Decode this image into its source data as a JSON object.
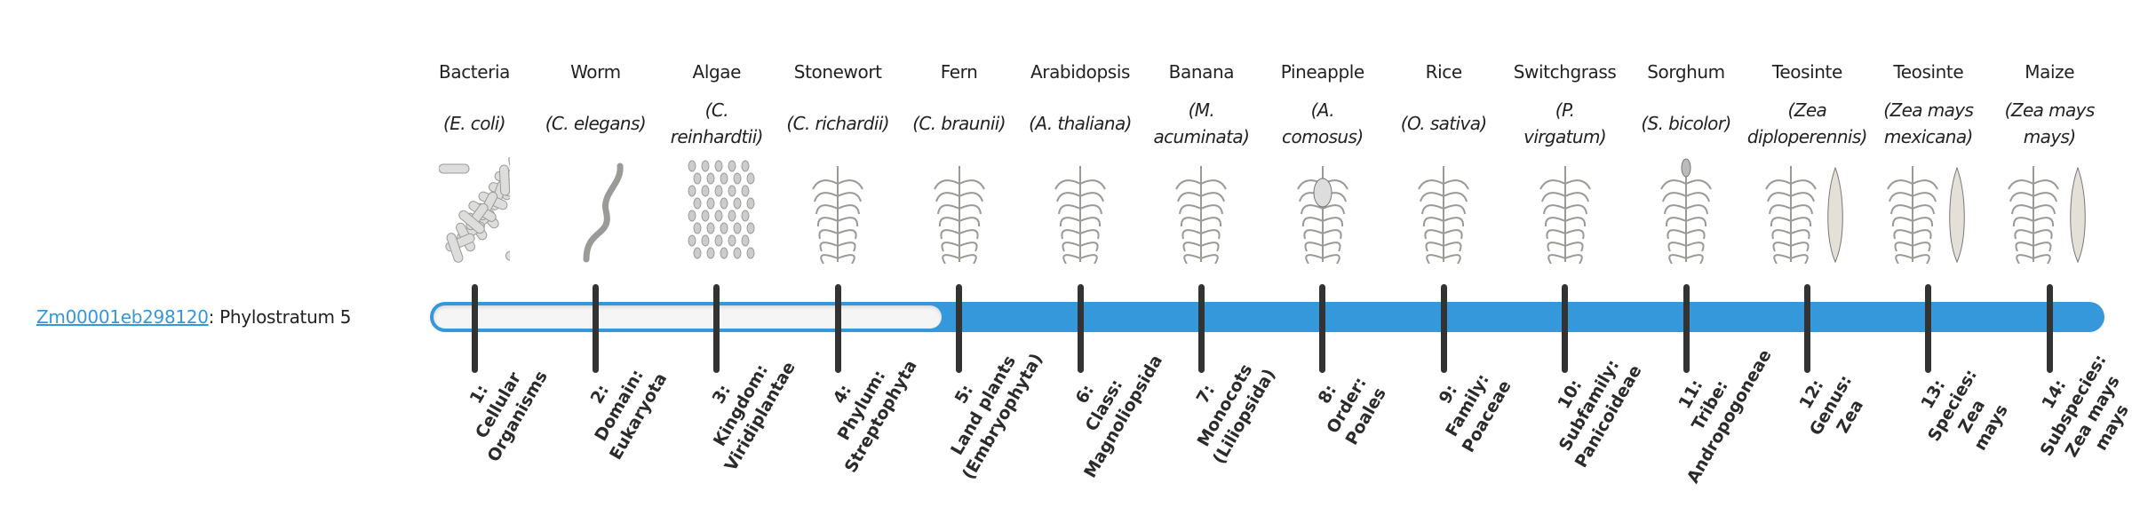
{
  "gene": {
    "id": "Zm00001eb298120",
    "suffix": ": Phylostratum 5",
    "phylostratum": 5
  },
  "colors": {
    "accent": "#3498db",
    "tick": "#333333",
    "empty": "#f5f5f5"
  },
  "organisms": [
    {
      "common": "Bacteria",
      "species": [
        "(E. coli)"
      ],
      "icon": "bacteria-image"
    },
    {
      "common": "Worm",
      "species": [
        "(C. elegans)"
      ],
      "icon": "worm-image"
    },
    {
      "common": "Algae",
      "species": [
        "(C.",
        "reinhardtii)"
      ],
      "icon": "algae-image"
    },
    {
      "common": "Stonewort",
      "species": [
        "(C. richardii)"
      ],
      "icon": "stonewort-image"
    },
    {
      "common": "Fern",
      "species": [
        "(C. braunii)"
      ],
      "icon": "fern-image"
    },
    {
      "common": "Arabidopsis",
      "species": [
        "(A. thaliana)"
      ],
      "icon": "arabidopsis-image"
    },
    {
      "common": "Banana",
      "species": [
        "(M.",
        "acuminata)"
      ],
      "icon": "banana-image"
    },
    {
      "common": "Pineapple",
      "species": [
        "(A.",
        "comosus)"
      ],
      "icon": "pineapple-image"
    },
    {
      "common": "Rice",
      "species": [
        "(O. sativa)"
      ],
      "icon": "rice-image"
    },
    {
      "common": "Switchgrass",
      "species": [
        "(P.",
        "virgatum)"
      ],
      "icon": "switchgrass-image"
    },
    {
      "common": "Sorghum",
      "species": [
        "(S. bicolor)"
      ],
      "icon": "sorghum-image"
    },
    {
      "common": "Teosinte",
      "species": [
        "(Zea",
        "diploperennis)"
      ],
      "icon": "teosinte-image"
    },
    {
      "common": "Teosinte",
      "species": [
        "(Zea mays",
        "mexicana)"
      ],
      "icon": "teosinte-mexicana-image"
    },
    {
      "common": "Maize",
      "species": [
        "(Zea mays",
        "mays)"
      ],
      "icon": "maize-image"
    }
  ],
  "strata": [
    [
      "1:",
      "Cellular",
      "Organisms"
    ],
    [
      "2:",
      "Domain:",
      "Eukaryota"
    ],
    [
      "3:",
      "Kingdom:",
      "Viridiplantae"
    ],
    [
      "4:",
      "Phylum:",
      "Streptophyta"
    ],
    [
      "5:",
      "Land plants",
      "(Embryophyta)"
    ],
    [
      "6:",
      "Class:",
      "Magnoliopsida"
    ],
    [
      "7:",
      "Monocots",
      "(Liliopsida)"
    ],
    [
      "8:",
      "Order:",
      "Poales"
    ],
    [
      "9:",
      "Family:",
      "Poaceae"
    ],
    [
      "10:",
      "Subfamily:",
      "Panicoideae"
    ],
    [
      "11:",
      "Tribe:",
      "Andropogoneae"
    ],
    [
      "12:",
      "Genus:",
      "Zea"
    ],
    [
      "13:",
      "Species:",
      "Zea",
      "mays"
    ],
    [
      "14:",
      "Subspecies:",
      "Zea mays",
      "mays"
    ]
  ]
}
